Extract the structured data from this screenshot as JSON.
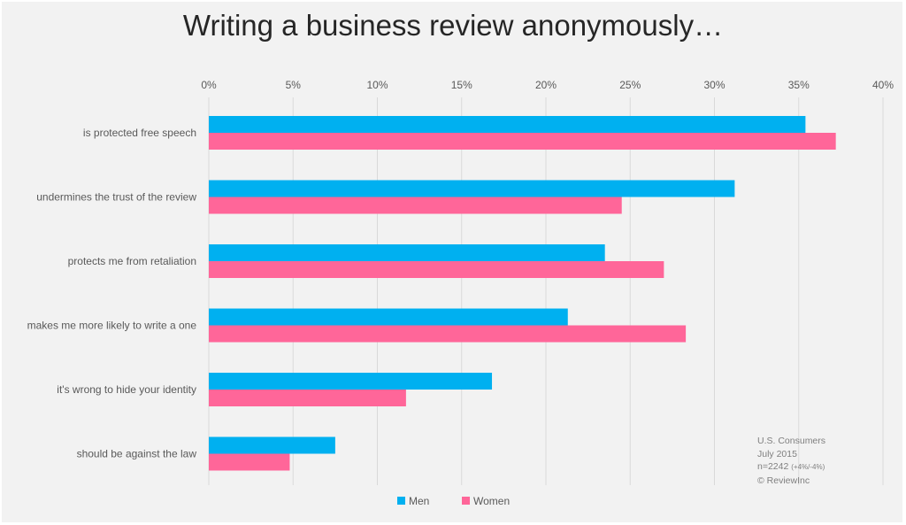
{
  "chart_data": {
    "type": "bar",
    "orientation": "horizontal",
    "title": "Writing a business review anonymously…",
    "categories": [
      "is protected free speech",
      "undermines the trust of the review",
      "protects me from retaliation",
      "makes me more likely to write a one",
      "it's wrong to hide your identity",
      "should be against the law"
    ],
    "series": [
      {
        "name": "Men",
        "color": "#00b0f0",
        "values": [
          35.4,
          31.2,
          23.5,
          21.3,
          16.8,
          7.5
        ]
      },
      {
        "name": "Women",
        "color": "#ff6699",
        "values": [
          37.2,
          24.5,
          27.0,
          28.3,
          11.7,
          4.8
        ]
      }
    ],
    "xlim": [
      0,
      40
    ],
    "xticks": [
      "0%",
      "5%",
      "10%",
      "15%",
      "20%",
      "25%",
      "30%",
      "35%",
      "40%"
    ],
    "xaxis_position": "top",
    "grid": true,
    "legend_position": "bottom",
    "annotation": {
      "line1": "U.S. Consumers",
      "line2": "July 2015",
      "line3": "n=2242",
      "line3_small": "(+4%/-4%)",
      "line4": "© ReviewInc"
    }
  }
}
